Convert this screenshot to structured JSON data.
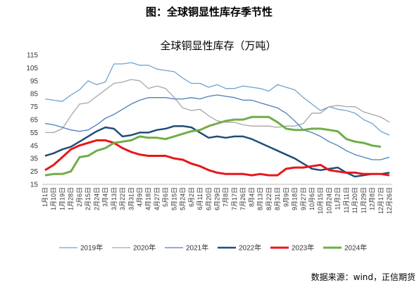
{
  "header": {
    "title": "图：全球铜显性库存季节性"
  },
  "source": "数据来源：wind，正信期货",
  "chart_data": {
    "type": "line",
    "title": "全球铜显性库存（万吨）",
    "categories": [
      "1月1日",
      "1月10日",
      "1月19日",
      "1月28日",
      "2月6日",
      "2月15日",
      "2月24日",
      "3月4日",
      "3月13日",
      "3月22日",
      "3月31日",
      "4月9日",
      "4月18日",
      "4月27日",
      "5月6日",
      "5月15日",
      "5月24日",
      "6月2日",
      "6月11日",
      "6月20日",
      "6月29日",
      "7月8日",
      "7月17日",
      "7月26日",
      "8月4日",
      "8月13日",
      "8月22日",
      "8月31日",
      "9月9日",
      "9月18日",
      "9月27日",
      "10月6日",
      "10月15日",
      "10月24日",
      "11月2日",
      "11月11日",
      "11月20日",
      "11月29日",
      "12月8日",
      "12月17日",
      "12月26日"
    ],
    "ylim": [
      15,
      115
    ],
    "yticks": [
      15,
      25,
      35,
      45,
      55,
      65,
      75,
      85,
      95,
      105,
      115
    ],
    "grid": false,
    "series": [
      {
        "name": "2019年",
        "color": "#6ea3d4",
        "width": 1.3,
        "values": [
          81,
          80,
          79,
          84,
          88,
          95,
          92,
          94,
          108,
          108,
          109,
          107,
          107,
          104,
          103,
          102,
          97,
          93,
          93,
          90,
          92,
          89,
          89,
          91,
          90,
          89,
          87,
          92,
          90,
          88,
          82,
          77,
          72,
          75,
          73,
          72,
          70,
          65,
          62,
          56,
          53
        ]
      },
      {
        "name": "2020年",
        "color": "#a6a6a6",
        "width": 1.3,
        "values": [
          55,
          55,
          58,
          68,
          77,
          78,
          83,
          88,
          93,
          94,
          96,
          95,
          89,
          91,
          89,
          82,
          74,
          72,
          73,
          68,
          64,
          63,
          63,
          61,
          60,
          60,
          60,
          59,
          60,
          60,
          62,
          70,
          70,
          75,
          76,
          75,
          75,
          71,
          69,
          67,
          63
        ]
      },
      {
        "name": "2021年",
        "color": "#4a7ebb",
        "width": 1.3,
        "values": [
          62,
          61,
          59,
          57,
          56,
          57,
          61,
          66,
          69,
          73,
          77,
          80,
          82,
          82,
          82,
          81,
          81,
          82,
          81,
          83,
          84,
          83,
          82,
          80,
          80,
          78,
          76,
          74,
          70,
          64,
          57,
          55,
          52,
          48,
          45,
          41,
          38,
          36,
          34,
          34,
          36
        ]
      },
      {
        "name": "2022年",
        "color": "#1f4e79",
        "width": 2.5,
        "values": [
          37,
          39,
          42,
          44,
          48,
          52,
          56,
          59,
          58,
          52,
          53,
          55,
          55,
          57,
          58,
          60,
          60,
          59,
          55,
          51,
          52,
          51,
          52,
          52,
          50,
          47,
          44,
          41,
          38,
          35,
          31,
          27,
          26,
          27,
          28,
          24,
          21,
          22,
          23,
          23,
          24
        ]
      },
      {
        "name": "2023年",
        "color": "#e8161b",
        "width": 3,
        "values": [
          26,
          30,
          36,
          42,
          45,
          47,
          49,
          49,
          47,
          43,
          40,
          38,
          37,
          37,
          37,
          35,
          34,
          31,
          29,
          26,
          24,
          23,
          23,
          23,
          22,
          23,
          22,
          22,
          27,
          28,
          28,
          29,
          30,
          26,
          25,
          24,
          24,
          23,
          23,
          23,
          22
        ]
      },
      {
        "name": "2024年",
        "color": "#70ad47",
        "width": 3,
        "values": [
          22,
          23,
          23,
          25,
          36,
          37,
          41,
          43,
          47,
          48,
          49,
          52,
          51,
          51,
          50,
          52,
          54,
          56,
          57,
          60,
          62,
          64,
          65,
          65,
          67,
          67,
          67,
          63,
          58,
          57,
          57,
          58,
          58,
          57,
          56,
          50,
          48,
          47,
          45,
          44,
          null
        ]
      }
    ]
  }
}
